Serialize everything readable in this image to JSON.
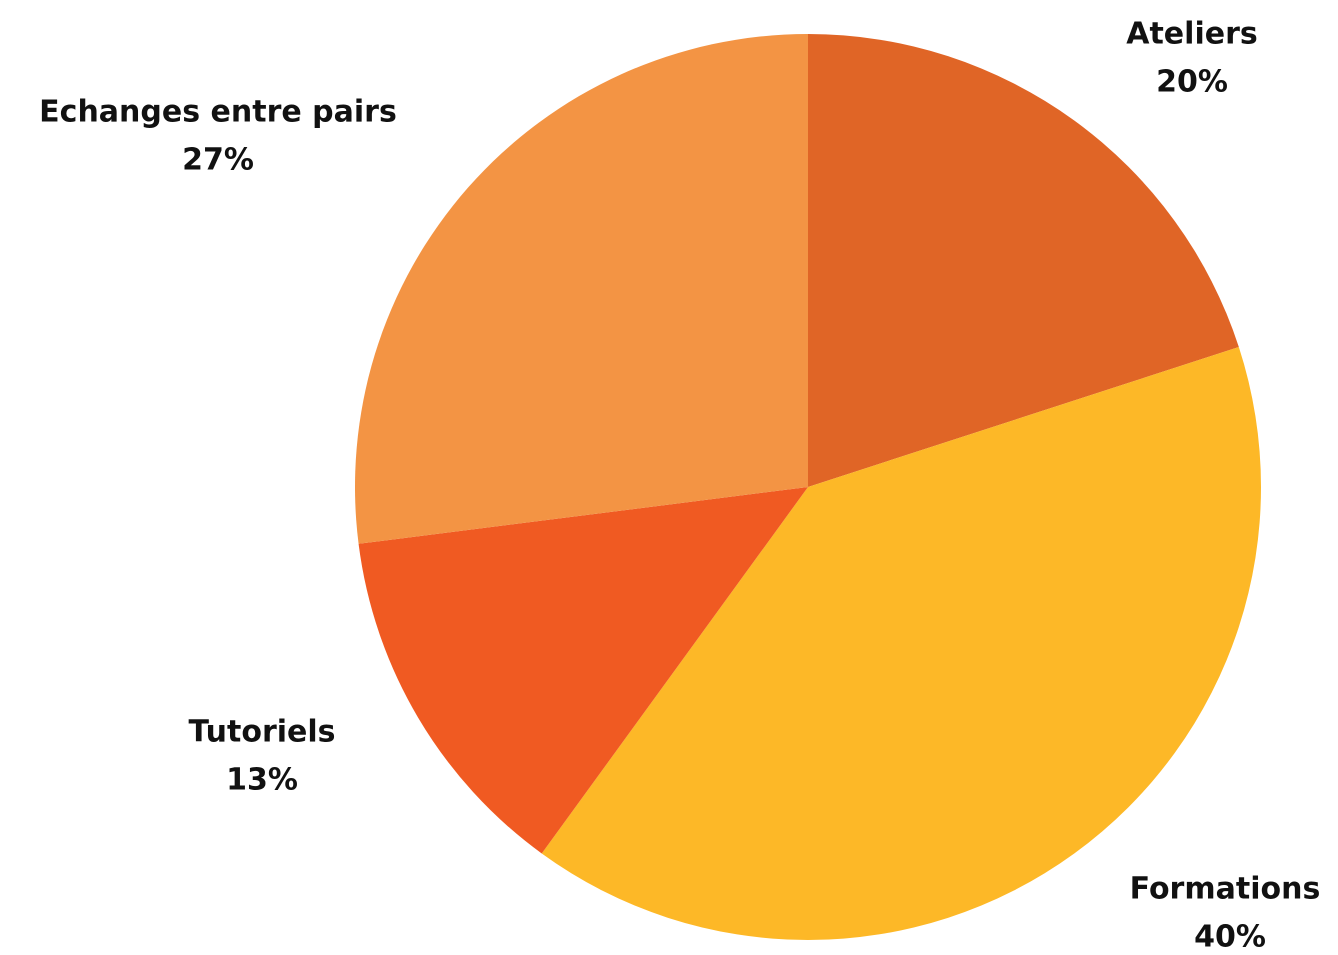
{
  "chart_data": {
    "type": "pie",
    "categories": [
      "Ateliers",
      "Formations",
      "Tutoriels",
      "Echanges entre pairs"
    ],
    "values": [
      20,
      40,
      13,
      27
    ],
    "value_labels": [
      "20%",
      "40%",
      "13%",
      "27%"
    ],
    "colors": [
      "#e06526",
      "#fdb827",
      "#f05a22",
      "#f39444"
    ]
  }
}
